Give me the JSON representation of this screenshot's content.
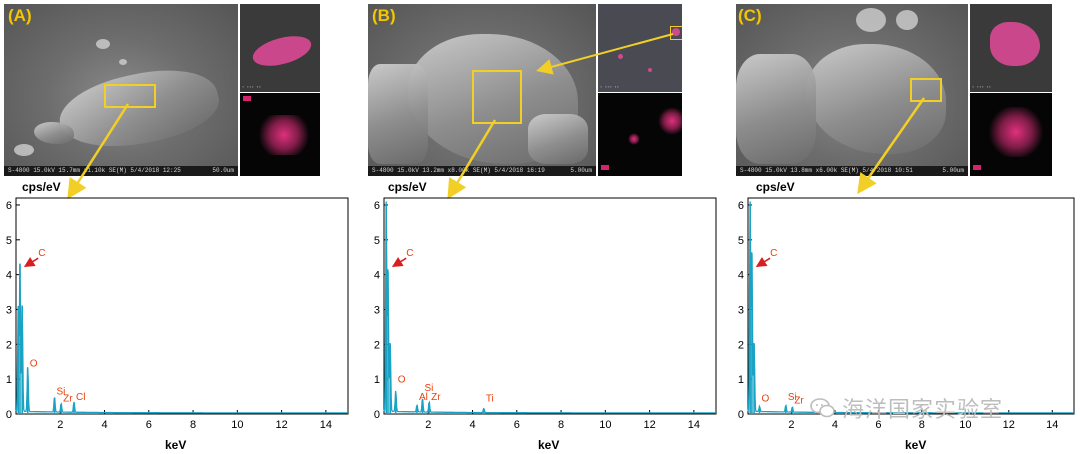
{
  "panels": [
    {
      "label": "(A)",
      "sem_caption": "S-4800 15.0kV 15.7mm x1.10k SE(M) 5/4/2018 12:25",
      "sem_scale": "50.0um"
    },
    {
      "label": "(B)",
      "sem_caption": "S-4800 15.0kV 13.2mm x8.00k SE(M) 5/4/2018 16:19",
      "sem_scale": "5.00um"
    },
    {
      "label": "(C)",
      "sem_caption": "S-4800 15.0kV 13.8mm x6.00k SE(M) 5/4/2018 10:51",
      "sem_scale": "5.00um"
    }
  ],
  "watermark": "海洋国家实验室",
  "colors": {
    "spectrum": "#1aa3c4",
    "label": "#e8400e",
    "arrow_yellow": "#f1cf27",
    "arrow_red": "#d81e1e"
  },
  "chart_data": [
    {
      "type": "line",
      "ylabel": "cps/eV",
      "xlabel": "keV",
      "xlim": [
        0,
        15
      ],
      "ylim": [
        0,
        6.2
      ],
      "xticks": [
        2,
        4,
        6,
        8,
        10,
        12,
        14
      ],
      "yticks": [
        0,
        1,
        2,
        3,
        4,
        5,
        6
      ],
      "peaks": [
        {
          "x": 0.1,
          "y": 3.0
        },
        {
          "x": 0.18,
          "y": 4.3
        },
        {
          "x": 0.28,
          "y": 3.1
        },
        {
          "x": 0.53,
          "y": 1.3
        },
        {
          "x": 1.74,
          "y": 0.45
        },
        {
          "x": 2.04,
          "y": 0.25
        },
        {
          "x": 2.62,
          "y": 0.3
        }
      ],
      "annotations": [
        {
          "text": "C",
          "x": 0.28,
          "y": 4.3
        },
        {
          "text": "O",
          "x": 0.53,
          "y": 1.3
        },
        {
          "text": "Si",
          "x": 1.74,
          "y": 0.5
        },
        {
          "text": "Zr",
          "x": 2.04,
          "y": 0.3
        },
        {
          "text": "Cl",
          "x": 2.62,
          "y": 0.35
        }
      ]
    },
    {
      "type": "line",
      "ylabel": "cps/eV",
      "xlabel": "keV",
      "xlim": [
        0,
        15
      ],
      "ylim": [
        0,
        6.2
      ],
      "xticks": [
        2,
        4,
        6,
        8,
        10,
        12,
        14
      ],
      "yticks": [
        0,
        1,
        2,
        3,
        4,
        5,
        6
      ],
      "peaks": [
        {
          "x": 0.1,
          "y": 6.0
        },
        {
          "x": 0.18,
          "y": 4.1
        },
        {
          "x": 0.28,
          "y": 2.0
        },
        {
          "x": 0.53,
          "y": 0.6
        },
        {
          "x": 1.49,
          "y": 0.2
        },
        {
          "x": 1.74,
          "y": 0.4
        },
        {
          "x": 2.04,
          "y": 0.3
        },
        {
          "x": 4.51,
          "y": 0.12
        }
      ],
      "annotations": [
        {
          "text": "C",
          "x": 0.28,
          "y": 4.3
        },
        {
          "text": "O",
          "x": 0.53,
          "y": 0.85
        },
        {
          "text": "Al",
          "x": 1.49,
          "y": 0.35
        },
        {
          "text": "Si",
          "x": 1.74,
          "y": 0.6
        },
        {
          "text": "Zr",
          "x": 2.04,
          "y": 0.35
        },
        {
          "text": "Ti",
          "x": 4.51,
          "y": 0.3
        }
      ]
    },
    {
      "type": "line",
      "ylabel": "cps/eV",
      "xlabel": "keV",
      "xlim": [
        0,
        15
      ],
      "ylim": [
        0,
        6.2
      ],
      "xticks": [
        2,
        4,
        6,
        8,
        10,
        12,
        14
      ],
      "yticks": [
        0,
        1,
        2,
        3,
        4,
        5,
        6
      ],
      "peaks": [
        {
          "x": 0.1,
          "y": 6.0
        },
        {
          "x": 0.18,
          "y": 4.6
        },
        {
          "x": 0.28,
          "y": 2.0
        },
        {
          "x": 0.53,
          "y": 0.15
        },
        {
          "x": 1.74,
          "y": 0.2
        },
        {
          "x": 2.04,
          "y": 0.15
        }
      ],
      "annotations": [
        {
          "text": "C",
          "x": 0.28,
          "y": 4.3
        },
        {
          "text": "O",
          "x": 0.53,
          "y": 0.3
        },
        {
          "text": "Si",
          "x": 1.74,
          "y": 0.35
        },
        {
          "text": "Zr",
          "x": 2.04,
          "y": 0.25
        }
      ]
    }
  ]
}
